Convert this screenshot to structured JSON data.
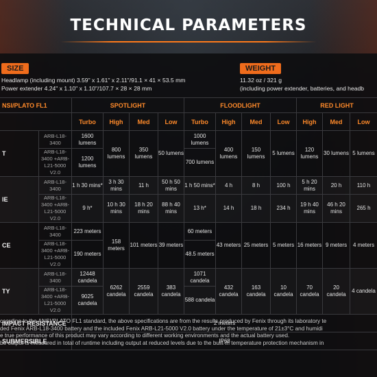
{
  "title": "TECHNICAL PARAMETERS",
  "size": {
    "label": "SIZE",
    "line1": "Headlamp (including mount)  3.59\" x 1.61\" x 2.11\"/91.1 × 41 × 53.5 mm",
    "line2": "Power extender  4.24\" x 1.10\" x 1.10\"/107.7 × 28 × 28 mm"
  },
  "weight": {
    "label": "WEIGHT",
    "line1": "11.32 oz / 321 g",
    "line2": "(including power extender, batteries, and headb"
  },
  "table": {
    "standard": "NSI/PLATO FL1",
    "groups": [
      "SPOTLIGHT",
      "FLOODLIGHT",
      "RED LIGHT"
    ],
    "modes": [
      "Turbo",
      "High",
      "Med",
      "Low",
      "Turbo",
      "High",
      "Med",
      "Low",
      "High",
      "Med",
      "Low"
    ],
    "rows": [
      {
        "label": "T",
        "bat1": "ARB-L18-3400",
        "bat2": "ARB-L18-3400 +ARB-L21-5000 V2.0",
        "spot_turbo": [
          "1600 lumens",
          "1200 lumens"
        ],
        "spot": [
          "800 lumens",
          "350 lumens",
          "50 lumens"
        ],
        "flood_turbo": [
          "1000 lumens",
          "700 lumens"
        ],
        "flood": [
          "400 lumens",
          "150 lumens",
          "5 lumens"
        ],
        "red": [
          "120 lumens",
          "30 lumens",
          "5 lumens"
        ]
      },
      {
        "label": "IE",
        "bat1": "ARB-L18-3400",
        "bat2": "ARB-L18-3400 +ARB-L21-5000 V2.0",
        "b1": [
          "1 h 30 mins*",
          "3 h 30 mins",
          "11 h",
          "50 h 50 mins",
          "1 h 50 mins*",
          "4 h",
          "8 h",
          "100 h",
          "5 h 20 mins",
          "20 h",
          "110 h"
        ],
        "b2": [
          "9 h*",
          "10 h 30 mins",
          "18 h 20 mins",
          "88 h 40 mins",
          "13 h*",
          "14 h",
          "18 h",
          "234 h",
          "19 h 40 mins",
          "46 h 20 mins",
          "265 h"
        ]
      },
      {
        "label": "CE",
        "bat1": "ARB-L18-3400",
        "bat2": "ARB-L18-3400 +ARB-L21-5000 V2.0",
        "spot_turbo": [
          "223 meters",
          "190 meters"
        ],
        "spot": [
          "158 meters",
          "101 meters",
          "39 meters"
        ],
        "flood_turbo": [
          "60 meters",
          "48.5 meters"
        ],
        "flood": [
          "43 meters",
          "25 meters",
          "5 meters"
        ],
        "red": [
          "16 meters",
          "9 meters",
          "4 meters"
        ]
      },
      {
        "label": "TY",
        "bat1": "ARB-L18-3400",
        "bat2": "ARB-L18-3400 +ARB-L21-5000 V2.0",
        "spot_turbo": [
          "12448 candela",
          "9025 candela"
        ],
        "spot": [
          "6262 candela",
          "2559 candela",
          "383 candela"
        ],
        "flood_turbo": [
          "1071 candela",
          "588 candela"
        ],
        "flood": [
          "432 candela",
          "163 candela",
          "10 candela"
        ],
        "red": [
          "70 candela",
          "20 candela",
          "4 candela"
        ]
      }
    ],
    "impact": {
      "label": "IMPACT RESISTANCE",
      "value": "2 meters"
    },
    "submersible": {
      "label": "SUBMERSIBLE",
      "value": "IP68"
    }
  },
  "notes": [
    "ccording to the ANSI/PLATO FL1 standard, the above specifications are from the results produced by Fenix through its laboratory te",
    "ded Fenix ARB-L18-3400 battery and the included Fenix ARB-L21-5000 V2.0 battery under the temperature of 21±3°C and humidi",
    "e true performance of this product may vary according to different working environments and the actual battery used.",
    "bo output is measured in total of runtime including output at reduced levels due to the built-in temperature protection mechanism in"
  ]
}
